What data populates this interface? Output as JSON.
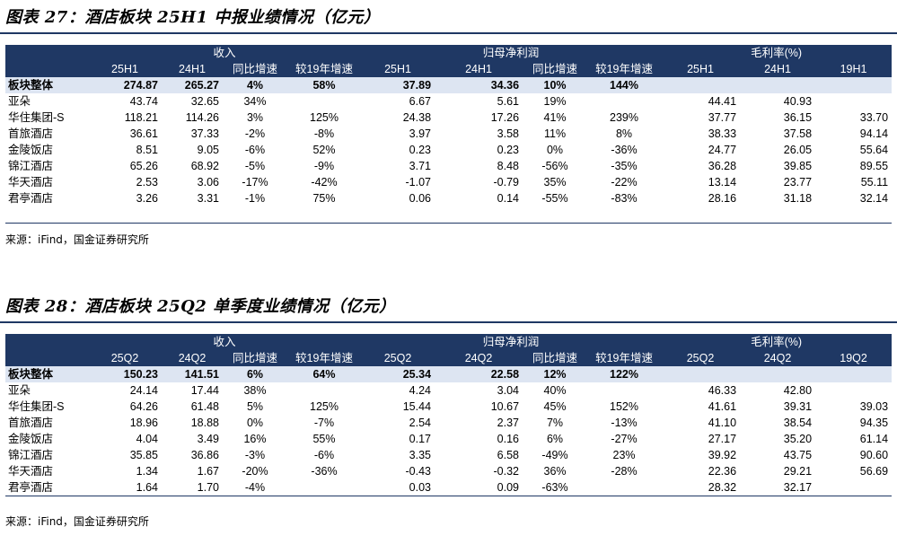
{
  "tables": [
    {
      "title": "图表 27：酒店板块 25H1 中报业绩情况（亿元）",
      "groups": [
        "收入",
        "归母净利润",
        "毛利率(%)"
      ],
      "columns": [
        "25H1",
        "24H1",
        "同比增速",
        "较19年增速",
        "25H1",
        "24H1",
        "同比增速",
        "较19年增速",
        "25H1",
        "24H1",
        "19H1"
      ],
      "rows": [
        {
          "name": "板块整体",
          "cells": [
            "274.87",
            "265.27",
            "4%",
            "58%",
            "37.89",
            "34.36",
            "10%",
            "144%",
            "",
            "",
            ""
          ]
        },
        {
          "name": "亚朵",
          "cells": [
            "43.74",
            "32.65",
            "34%",
            "",
            "6.67",
            "5.61",
            "19%",
            "",
            "44.41",
            "40.93",
            ""
          ]
        },
        {
          "name": "华住集团-S",
          "cells": [
            "118.21",
            "114.26",
            "3%",
            "125%",
            "24.38",
            "17.26",
            "41%",
            "239%",
            "37.77",
            "36.15",
            "33.70"
          ]
        },
        {
          "name": "首旅酒店",
          "cells": [
            "36.61",
            "37.33",
            "-2%",
            "-8%",
            "3.97",
            "3.58",
            "11%",
            "8%",
            "38.33",
            "37.58",
            "94.14"
          ]
        },
        {
          "name": "金陵饭店",
          "cells": [
            "8.51",
            "9.05",
            "-6%",
            "52%",
            "0.23",
            "0.23",
            "0%",
            "-36%",
            "24.77",
            "26.05",
            "55.64"
          ]
        },
        {
          "name": "锦江酒店",
          "cells": [
            "65.26",
            "68.92",
            "-5%",
            "-9%",
            "3.71",
            "8.48",
            "-56%",
            "-35%",
            "36.28",
            "39.85",
            "89.55"
          ]
        },
        {
          "name": "华天酒店",
          "cells": [
            "2.53",
            "3.06",
            "-17%",
            "-42%",
            "-1.07",
            "-0.79",
            "35%",
            "-22%",
            "13.14",
            "23.77",
            "55.11"
          ]
        },
        {
          "name": "君亭酒店",
          "cells": [
            "3.26",
            "3.31",
            "-1%",
            "75%",
            "0.06",
            "0.14",
            "-55%",
            "-83%",
            "28.16",
            "31.18",
            "32.14"
          ]
        }
      ],
      "source": "来源：iFind，国金证券研究所"
    },
    {
      "title": "图表 28：酒店板块 25Q2 单季度业绩情况（亿元）",
      "groups": [
        "收入",
        "归母净利润",
        "毛利率(%)"
      ],
      "columns": [
        "25Q2",
        "24Q2",
        "同比增速",
        "较19年增速",
        "25Q2",
        "24Q2",
        "同比增速",
        "较19年增速",
        "25Q2",
        "24Q2",
        "19Q2"
      ],
      "rows": [
        {
          "name": "板块整体",
          "cells": [
            "150.23",
            "141.51",
            "6%",
            "64%",
            "25.34",
            "22.58",
            "12%",
            "122%",
            "",
            "",
            ""
          ]
        },
        {
          "name": "亚朵",
          "cells": [
            "24.14",
            "17.44",
            "38%",
            "",
            "4.24",
            "3.04",
            "40%",
            "",
            "46.33",
            "42.80",
            ""
          ]
        },
        {
          "name": "华住集团-S",
          "cells": [
            "64.26",
            "61.48",
            "5%",
            "125%",
            "15.44",
            "10.67",
            "45%",
            "152%",
            "41.61",
            "39.31",
            "39.03"
          ]
        },
        {
          "name": "首旅酒店",
          "cells": [
            "18.96",
            "18.88",
            "0%",
            "-7%",
            "2.54",
            "2.37",
            "7%",
            "-13%",
            "41.10",
            "38.54",
            "94.35"
          ]
        },
        {
          "name": "金陵饭店",
          "cells": [
            "4.04",
            "3.49",
            "16%",
            "55%",
            "0.17",
            "0.16",
            "6%",
            "-27%",
            "27.17",
            "35.20",
            "61.14"
          ]
        },
        {
          "name": "锦江酒店",
          "cells": [
            "35.85",
            "36.86",
            "-3%",
            "-6%",
            "3.35",
            "6.58",
            "-49%",
            "23%",
            "39.92",
            "43.75",
            "90.60"
          ]
        },
        {
          "name": "华天酒店",
          "cells": [
            "1.34",
            "1.67",
            "-20%",
            "-36%",
            "-0.43",
            "-0.32",
            "36%",
            "-28%",
            "22.36",
            "29.21",
            "56.69"
          ]
        },
        {
          "name": "君亭酒店",
          "cells": [
            "1.64",
            "1.70",
            "-4%",
            "",
            "0.03",
            "0.09",
            "-63%",
            "",
            "28.32",
            "32.17",
            ""
          ]
        }
      ],
      "source": "来源：iFind，国金证券研究所"
    }
  ],
  "colors": {
    "header_bg": "#1f3864",
    "header_text": "#ffffff",
    "total_bg": "#dde5f2"
  }
}
